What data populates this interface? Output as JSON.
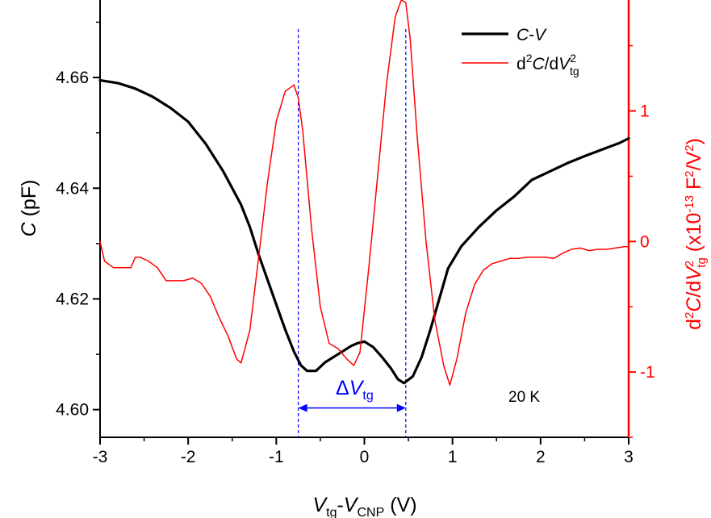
{
  "chart_data": {
    "type": "line",
    "colors": {
      "cv": "#000000",
      "d2c": "#ff0000",
      "marker": "#0000ff"
    },
    "x_axis": {
      "label_main": "V",
      "label_sub": "tg",
      "label_sep": "-",
      "label_main2": "V",
      "label_sub2": "CNP",
      "label_unit": " (V)",
      "range": [
        -3,
        3
      ],
      "ticks": [
        -3,
        -2,
        -1,
        0,
        1,
        2,
        3
      ],
      "tick_labels": [
        "-3",
        "-2",
        "-1",
        "0",
        "1",
        "2",
        "3"
      ]
    },
    "y_left": {
      "label_main": "C",
      "label_unit": " (pF)",
      "range": [
        4.595,
        4.674
      ],
      "ticks": [
        4.6,
        4.62,
        4.64,
        4.66
      ],
      "tick_labels": [
        "4.60",
        "4.62",
        "4.64",
        "4.66"
      ]
    },
    "y_right": {
      "label_d": "d",
      "label_sup1": "2",
      "label_C": "C",
      "label_slash": "/d",
      "label_V": "V",
      "label_sup2": "2",
      "label_sub": "tg",
      "label_mult": " (x10",
      "label_exp": "-13",
      "label_unit_a": " F",
      "label_exp2": "2",
      "label_unit_b": "/V",
      "label_exp3": "2",
      "label_close": ")",
      "range": [
        -1.5,
        1.85
      ],
      "ticks": [
        -1,
        0,
        1
      ],
      "tick_labels": [
        "-1",
        "0",
        "1"
      ]
    },
    "series": [
      {
        "name": "C-V",
        "axis": "left",
        "x": [
          -3.0,
          -2.8,
          -2.6,
          -2.4,
          -2.2,
          -2.0,
          -1.8,
          -1.6,
          -1.4,
          -1.3,
          -1.2,
          -1.1,
          -1.0,
          -0.9,
          -0.8,
          -0.72,
          -0.65,
          -0.55,
          -0.45,
          -0.35,
          -0.25,
          -0.15,
          -0.08,
          0.0,
          0.1,
          0.2,
          0.3,
          0.38,
          0.45,
          0.55,
          0.65,
          0.75,
          0.85,
          0.95,
          1.1,
          1.3,
          1.5,
          1.7,
          1.9,
          2.1,
          2.3,
          2.5,
          2.7,
          2.9,
          3.0
        ],
        "y": [
          4.6595,
          4.659,
          4.658,
          4.6565,
          4.6545,
          4.652,
          4.648,
          4.643,
          4.637,
          4.633,
          4.628,
          4.6235,
          4.619,
          4.6145,
          4.6105,
          4.608,
          4.607,
          4.607,
          4.6085,
          4.6095,
          4.6105,
          4.6115,
          4.612,
          4.6123,
          4.6113,
          4.6095,
          4.6075,
          4.6055,
          4.6048,
          4.606,
          4.6095,
          4.6145,
          4.62,
          4.6255,
          4.6295,
          4.633,
          4.636,
          4.6385,
          4.6415,
          4.643,
          4.6445,
          4.6458,
          4.647,
          4.6482,
          4.649
        ]
      },
      {
        "name": "d2C/dVtg2",
        "axis": "right",
        "x": [
          -3.0,
          -2.95,
          -2.85,
          -2.75,
          -2.65,
          -2.6,
          -2.55,
          -2.45,
          -2.35,
          -2.25,
          -2.15,
          -2.05,
          -1.95,
          -1.85,
          -1.75,
          -1.65,
          -1.55,
          -1.45,
          -1.4,
          -1.3,
          -1.2,
          -1.1,
          -1.0,
          -0.9,
          -0.8,
          -0.75,
          -0.7,
          -0.6,
          -0.5,
          -0.4,
          -0.3,
          -0.2,
          -0.12,
          -0.05,
          0.05,
          0.15,
          0.25,
          0.35,
          0.42,
          0.47,
          0.52,
          0.6,
          0.7,
          0.8,
          0.9,
          0.97,
          1.05,
          1.15,
          1.25,
          1.35,
          1.45,
          1.55,
          1.65,
          1.75,
          1.85,
          1.95,
          2.05,
          2.15,
          2.25,
          2.35,
          2.45,
          2.55,
          2.65,
          2.75,
          2.85,
          2.95,
          3.0
        ],
        "y": [
          0.0,
          -0.15,
          -0.2,
          -0.2,
          -0.2,
          -0.12,
          -0.12,
          -0.15,
          -0.2,
          -0.3,
          -0.3,
          -0.3,
          -0.28,
          -0.32,
          -0.42,
          -0.58,
          -0.72,
          -0.9,
          -0.93,
          -0.68,
          -0.12,
          0.45,
          0.92,
          1.15,
          1.2,
          1.1,
          0.85,
          0.1,
          -0.5,
          -0.78,
          -0.82,
          -0.9,
          -0.95,
          -0.85,
          -0.2,
          0.5,
          1.2,
          1.72,
          1.85,
          1.83,
          1.55,
          0.8,
          0.0,
          -0.6,
          -0.95,
          -1.1,
          -0.9,
          -0.55,
          -0.33,
          -0.22,
          -0.17,
          -0.15,
          -0.13,
          -0.13,
          -0.12,
          -0.12,
          -0.12,
          -0.13,
          -0.09,
          -0.06,
          -0.05,
          -0.07,
          -0.06,
          -0.06,
          -0.05,
          -0.04,
          -0.04
        ]
      }
    ],
    "markers": {
      "vlines_x": [
        -0.75,
        0.47
      ],
      "arrow_y": 4.6003,
      "delta_label": "Δ",
      "delta_main": "V",
      "delta_sub": "tg"
    },
    "legend": {
      "position": "top-right",
      "items": [
        {
          "main1": "C",
          "sep": "-",
          "main2": "V"
        },
        {
          "d": "d",
          "sup1": "2",
          "C": "C",
          "slash": "/d",
          "V": "V",
          "sup2": "2",
          "sub": "tg"
        }
      ]
    },
    "annotation": "20 K",
    "grid": false
  }
}
